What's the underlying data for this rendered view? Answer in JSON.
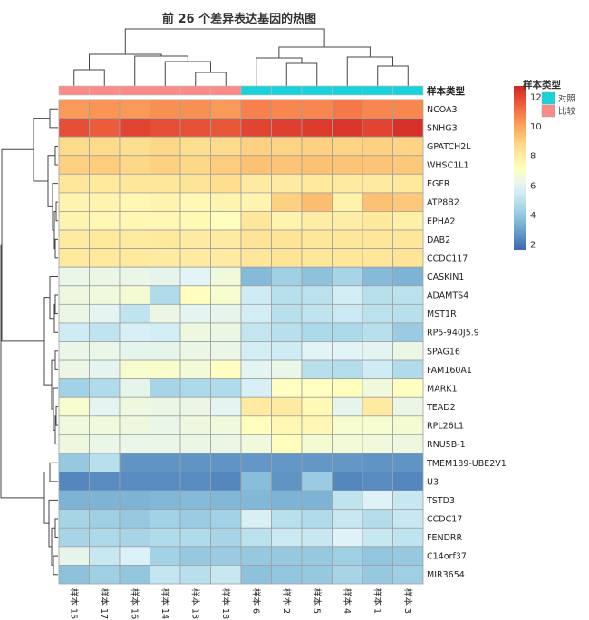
{
  "chart_data": {
    "type": "heatmap",
    "title": "前 26 个差异表达基因的热图",
    "annotation_label": "样本类型",
    "columns": [
      "样本 15",
      "样本 17",
      "样本 16",
      "样本 14",
      "样本 13",
      "样本 18",
      "样本 6",
      "样本 2",
      "样本 5",
      "样本 4",
      "样本 1",
      "样本 3"
    ],
    "column_groups": [
      "比较",
      "比较",
      "比较",
      "比较",
      "比较",
      "比较",
      "对照",
      "对照",
      "对照",
      "对照",
      "对照",
      "对照"
    ],
    "rows": [
      "NCOA3",
      "SNHG3",
      "GPATCH2L",
      "WHSC1L1",
      "EGFR",
      "ATP8B2",
      "EPHA2",
      "DAB2",
      "CCDC117",
      "CASKIN1",
      "ADAMTS4",
      "MST1R",
      "RP5-940J5.9",
      "SPAG16",
      "FAM160A1",
      "MARK1",
      "TEAD2",
      "RPL26L1",
      "RNU5B-1",
      "TMEM189-UBE2V1",
      "U3",
      "TSTD3",
      "CCDC17",
      "FENDRR",
      "C14orf37",
      "MIR3654"
    ],
    "values": [
      [
        10.2,
        10.3,
        10.2,
        10.4,
        10.4,
        10.2,
        10.7,
        10.6,
        10.6,
        10.9,
        10.6,
        10.6
      ],
      [
        11.8,
        11.5,
        12.0,
        11.8,
        11.7,
        11.6,
        12.0,
        12.1,
        12.2,
        12.3,
        12.0,
        12.4
      ],
      [
        8.6,
        8.6,
        8.5,
        8.7,
        8.5,
        8.6,
        8.9,
        8.8,
        8.9,
        8.8,
        8.9,
        8.8
      ],
      [
        8.9,
        9.0,
        8.7,
        8.9,
        8.7,
        9.0,
        9.3,
        9.2,
        9.3,
        9.2,
        9.2,
        9.1
      ],
      [
        8.2,
        8.1,
        8.2,
        8.2,
        8.3,
        8.5,
        8.0,
        8.0,
        8.1,
        8.0,
        8.0,
        8.1
      ],
      [
        7.6,
        7.6,
        7.5,
        7.6,
        7.5,
        7.6,
        7.6,
        8.9,
        9.4,
        7.7,
        9.3,
        9.1
      ],
      [
        7.6,
        7.5,
        7.5,
        7.5,
        7.4,
        7.2,
        8.2,
        7.6,
        7.9,
        7.9,
        8.1,
        7.8
      ],
      [
        8.0,
        8.1,
        8.0,
        8.1,
        8.0,
        8.0,
        8.3,
        8.3,
        8.2,
        8.2,
        8.2,
        8.2
      ],
      [
        8.1,
        8.1,
        8.1,
        8.0,
        8.0,
        8.0,
        8.2,
        8.3,
        8.2,
        8.2,
        8.2,
        8.3
      ],
      [
        6.2,
        6.3,
        6.2,
        6.1,
        5.9,
        6.5,
        3.6,
        4.2,
        3.8,
        4.4,
        3.6,
        3.4
      ],
      [
        6.4,
        6.5,
        6.7,
        4.6,
        7.2,
        6.8,
        5.4,
        4.8,
        4.9,
        5.5,
        4.8,
        4.9
      ],
      [
        6.3,
        6.0,
        5.0,
        6.3,
        6.0,
        6.1,
        5.5,
        4.8,
        5.0,
        5.3,
        4.9,
        4.8
      ],
      [
        5.4,
        5.0,
        5.6,
        5.5,
        6.4,
        6.3,
        5.1,
        4.8,
        4.5,
        4.5,
        4.8,
        4.1
      ],
      [
        6.2,
        6.2,
        6.1,
        6.1,
        6.3,
        6.2,
        5.5,
        5.4,
        5.9,
        5.9,
        6.0,
        6.3
      ],
      [
        6.3,
        6.0,
        6.8,
        6.9,
        6.6,
        7.1,
        6.0,
        6.2,
        4.8,
        4.7,
        5.4,
        4.6
      ],
      [
        4.3,
        4.6,
        6.1,
        4.4,
        4.5,
        4.6,
        5.6,
        7.1,
        7.1,
        7.2,
        6.5,
        7.1
      ],
      [
        6.8,
        6.0,
        6.4,
        6.3,
        6.3,
        6.0,
        8.0,
        8.0,
        7.4,
        6.1,
        8.0,
        6.3
      ],
      [
        6.5,
        6.5,
        6.4,
        6.2,
        6.4,
        6.5,
        7.2,
        7.5,
        7.5,
        6.8,
        6.8,
        6.7
      ],
      [
        6.4,
        6.2,
        6.2,
        6.2,
        6.3,
        6.3,
        6.5,
        7.2,
        6.7,
        6.6,
        6.5,
        6.4
      ],
      [
        4.0,
        4.8,
        2.6,
        2.6,
        2.6,
        2.6,
        2.7,
        2.7,
        2.7,
        2.7,
        2.6,
        2.6
      ],
      [
        2.3,
        2.4,
        2.4,
        2.4,
        2.4,
        2.3,
        3.7,
        2.6,
        4.1,
        2.3,
        2.4,
        2.3
      ],
      [
        3.4,
        3.4,
        3.4,
        3.5,
        3.6,
        3.5,
        3.5,
        3.4,
        3.4,
        5.0,
        5.8,
        5.2
      ],
      [
        4.4,
        4.2,
        4.0,
        4.3,
        4.1,
        4.3,
        5.6,
        4.8,
        4.6,
        5.2,
        4.7,
        5.2
      ],
      [
        4.4,
        4.5,
        4.4,
        4.6,
        4.6,
        4.4,
        4.9,
        5.3,
        5.2,
        5.8,
        5.2,
        5.0
      ],
      [
        6.1,
        5.2,
        5.7,
        4.3,
        4.0,
        4.1,
        4.0,
        4.0,
        4.0,
        4.2,
        3.9,
        4.0
      ],
      [
        3.8,
        4.2,
        3.9,
        5.1,
        4.8,
        5.2,
        3.8,
        3.9,
        4.0,
        4.4,
        4.0,
        4.2
      ]
    ],
    "colorbar": {
      "ticks": [
        2,
        4,
        6,
        8,
        10,
        12
      ],
      "range": [
        1.6,
        12.7
      ],
      "colormap": "RdYlBu_r"
    },
    "legend": {
      "title": "样本类型",
      "entries": [
        {
          "label": "对照",
          "color": "#19d1d8"
        },
        {
          "label": "比较",
          "color": "#f98c88"
        }
      ],
      "position": "top-right"
    },
    "grid": true
  }
}
